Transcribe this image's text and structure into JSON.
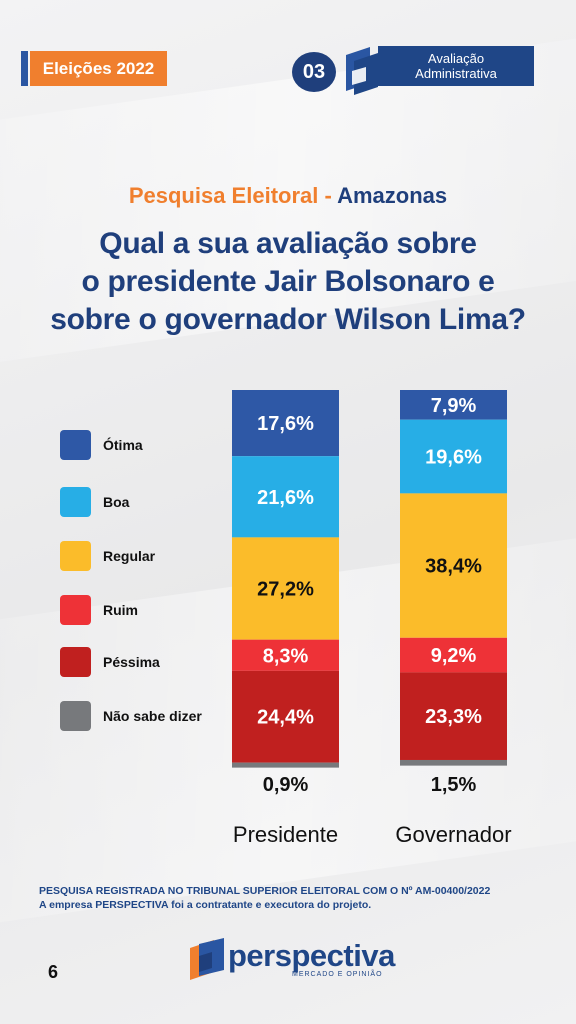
{
  "header": {
    "badge_label": "Eleições 2022",
    "number": "03",
    "section_line1": "Avaliação",
    "section_line2": "Administrativa"
  },
  "titles": {
    "subtitle_left": "Pesquisa Eleitoral - ",
    "subtitle_right": "Amazonas",
    "question_line1": "Qual a sua avaliação sobre",
    "question_line2": "o presidente Jair Bolsonaro e",
    "question_line3": "sobre o governador Wilson Lima?"
  },
  "legend": [
    {
      "label": "Ótima",
      "color": "#2e58a6"
    },
    {
      "label": "Boa",
      "color": "#27aee6"
    },
    {
      "label": "Regular",
      "color": "#fbbc2a"
    },
    {
      "label": "Ruim",
      "color": "#ee3237"
    },
    {
      "label": "Péssima",
      "color": "#c0201f"
    },
    {
      "label": "Não sabe dizer",
      "color": "#77797c"
    }
  ],
  "chart_data": {
    "type": "bar",
    "stacked": true,
    "categories": [
      "Presidente",
      "Governador"
    ],
    "series": [
      {
        "name": "Ótima",
        "color": "#2e58a6",
        "values": [
          17.6,
          7.9
        ],
        "labels": [
          "17,6%",
          "7,9%"
        ],
        "label_color": "#ffffff"
      },
      {
        "name": "Boa",
        "color": "#27aee6",
        "values": [
          21.6,
          19.6
        ],
        "labels": [
          "21,6%",
          "19,6%"
        ],
        "label_color": "#ffffff"
      },
      {
        "name": "Regular",
        "color": "#fbbc2a",
        "values": [
          27.2,
          38.4
        ],
        "labels": [
          "27,2%",
          "38,4%"
        ],
        "label_color": "#111111"
      },
      {
        "name": "Ruim",
        "color": "#ee3237",
        "values": [
          8.3,
          9.2
        ],
        "labels": [
          "8,3%",
          "9,2%"
        ],
        "label_color": "#ffffff"
      },
      {
        "name": "Péssima",
        "color": "#c0201f",
        "values": [
          24.4,
          23.3
        ],
        "labels": [
          "24,4%",
          "23,3%"
        ],
        "label_color": "#ffffff"
      },
      {
        "name": "Não sabe dizer",
        "color": "#77797c",
        "values": [
          0.9,
          1.5
        ],
        "labels": [
          "0,9%",
          "1,5%"
        ],
        "label_color": "#111111"
      }
    ],
    "ylim": [
      0,
      100
    ],
    "grid": false,
    "legend_position": "left"
  },
  "footer": {
    "note_line1": "PESQUISA REGISTRADA NO TRIBUNAL SUPERIOR ELEITORAL COM O Nº AM-00400/2022",
    "note_line2": "A empresa PERSPECTIVA foi a contratante e executora do projeto.",
    "page_number": "6",
    "brand_name": "perspectiva",
    "brand_tagline": "MERCADO E OPINIÃO"
  }
}
